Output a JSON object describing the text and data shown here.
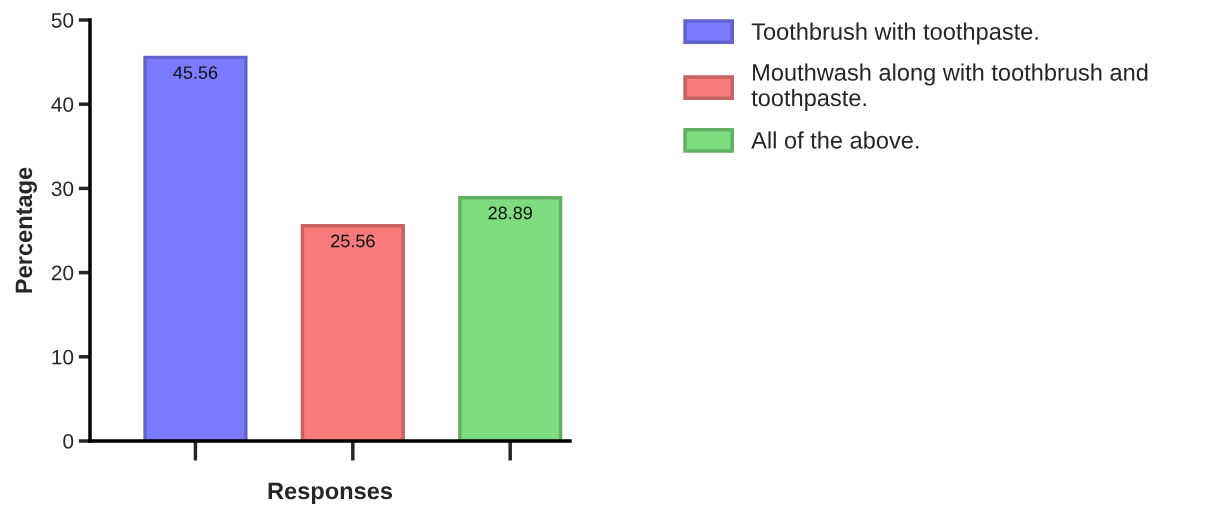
{
  "chart_data": {
    "type": "bar",
    "xlabel": "Responses",
    "ylabel": "Percentage",
    "categories": [
      null,
      null,
      null
    ],
    "series": [
      {
        "name": "Toothbrush with toothpaste.",
        "color": "#7b7bff",
        "values": [
          45.56,
          null,
          null
        ]
      },
      {
        "name": "Mouthwash along with toothbrush and\ntoothpaste.",
        "color": "#f77b7b",
        "values": [
          null,
          25.56,
          null
        ]
      },
      {
        "name": "All of the above.",
        "color": "#7ddc7d",
        "values": [
          null,
          null,
          28.89
        ]
      }
    ],
    "ylim": [
      0,
      50
    ],
    "yticks": [
      0,
      10,
      20,
      30,
      40,
      50
    ],
    "data_labels": true,
    "grid": false,
    "legend": "top right"
  }
}
